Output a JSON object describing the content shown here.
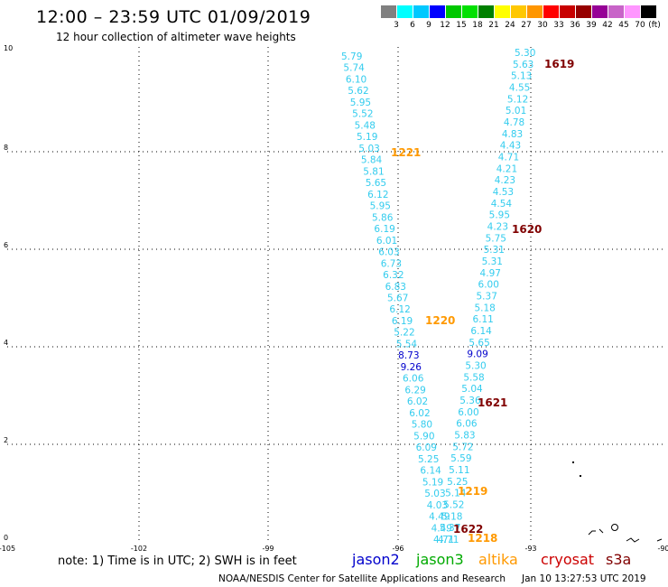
{
  "header": {
    "title": "12:00 – 23:59 UTC 01/09/2019",
    "subtitle": "12 hour collection of altimeter wave heights"
  },
  "colorbar": {
    "unit": "(ft)",
    "labels": [
      "3",
      "6",
      "9",
      "12",
      "15",
      "18",
      "21",
      "24",
      "27",
      "30",
      "33",
      "36",
      "39",
      "42",
      "45",
      "70"
    ],
    "colors": [
      "#808080",
      "#00ffff",
      "#00c8ff",
      "#0000ff",
      "#00c800",
      "#00e000",
      "#008000",
      "#ffff00",
      "#ffc800",
      "#ff9600",
      "#ff0000",
      "#c80000",
      "#960000",
      "#960096",
      "#c864c8",
      "#ff96ff",
      "#000000"
    ]
  },
  "axes": {
    "x_ticks": [
      "-105",
      "-102",
      "-99",
      "-96",
      "-93",
      "-90"
    ],
    "y_ticks": [
      "0",
      "2",
      "4",
      "6",
      "8",
      "10"
    ]
  },
  "track_left": {
    "color": "#33ccee",
    "values": [
      "5.79",
      "5.74",
      "6.10",
      "5.62",
      "5.95",
      "5.52",
      "5.48",
      "5.19",
      "5.03",
      "5.84",
      "5.81",
      "5.65",
      "6.12",
      "5.95",
      "5.86",
      "6.19",
      "6.01",
      "6.03",
      "6.73",
      "6.32",
      "6.83",
      "5.67",
      "6.12",
      "6.19",
      "5.22",
      "5.54",
      "8.73",
      "9.26",
      "6.06",
      "6.29",
      "6.02",
      "6.02",
      "5.80",
      "5.90",
      "6.09",
      "5.25",
      "6.14",
      "5.19",
      "5.03",
      "4.03",
      "4.49",
      "4.49",
      "4.71"
    ]
  },
  "track_right": {
    "color": "#33ccee",
    "values": [
      "5.30",
      "5.63",
      "5.13",
      "4.55",
      "5.12",
      "5.01",
      "4.78",
      "4.83",
      "4.43",
      "4.71",
      "4.21",
      "4.23",
      "4.53",
      "4.54",
      "5.95",
      "4.23",
      "5.75",
      "5.31",
      "5.31",
      "4.97",
      "6.00",
      "5.37",
      "5.18",
      "6.11",
      "6.14",
      "5.65",
      "9.09",
      "5.30",
      "5.58",
      "5.04",
      "5.36",
      "6.00",
      "6.06",
      "5.83",
      "5.72",
      "5.59",
      "5.11",
      "5.25",
      "5.14",
      "5.52",
      "5.18",
      "5.37",
      "4.71"
    ]
  },
  "time_labels": [
    {
      "text": "1619",
      "color": "#800000"
    },
    {
      "text": "1221",
      "color": "#ff9900"
    },
    {
      "text": "1620",
      "color": "#800000"
    },
    {
      "text": "1220",
      "color": "#ff9900"
    },
    {
      "text": "1621",
      "color": "#800000"
    },
    {
      "text": "1219",
      "color": "#ff9900"
    },
    {
      "text": "1622",
      "color": "#800000"
    },
    {
      "text": "1218",
      "color": "#ff9900"
    }
  ],
  "footer": {
    "note": "note:  1) Time is in UTC;  2) SWH is in feet",
    "satellites": [
      {
        "name": "jason2",
        "color": "#0000cc"
      },
      {
        "name": "jason3",
        "color": "#00aa00"
      },
      {
        "name": "altika",
        "color": "#ff9900"
      },
      {
        "name": "cryosat",
        "color": "#cc0000"
      },
      {
        "name": "s3a",
        "color": "#800000"
      }
    ],
    "credit": "NOAA/NESDIS Center for Satellite Applications and Research",
    "timestamp": "Jan 10 13:27:53 UTC 2019"
  }
}
